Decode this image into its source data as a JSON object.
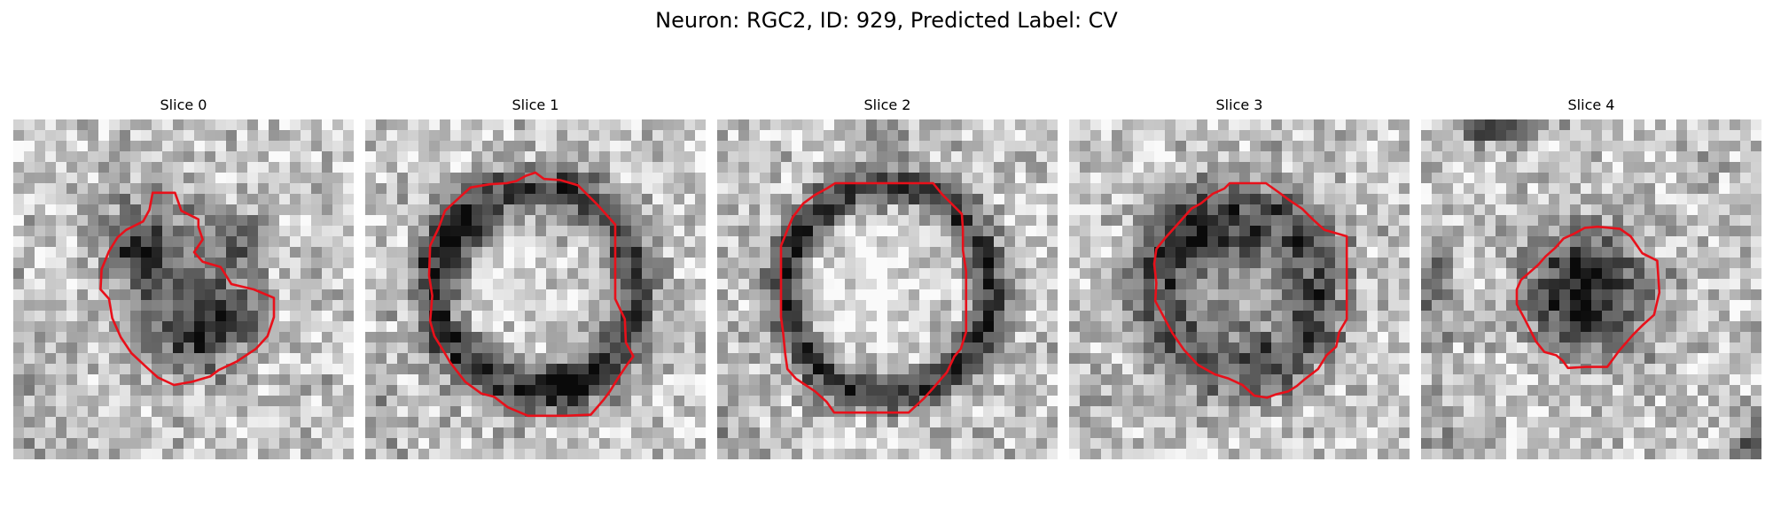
{
  "figure": {
    "title": "Neuron: RGC2, ID: 929, Predicted Label: CV",
    "contour_color": "#e8101a",
    "panels": [
      {
        "title": "Slice 0"
      },
      {
        "title": "Slice 1"
      },
      {
        "title": "Slice 2"
      },
      {
        "title": "Slice 3"
      },
      {
        "title": "Slice 4"
      }
    ]
  }
}
